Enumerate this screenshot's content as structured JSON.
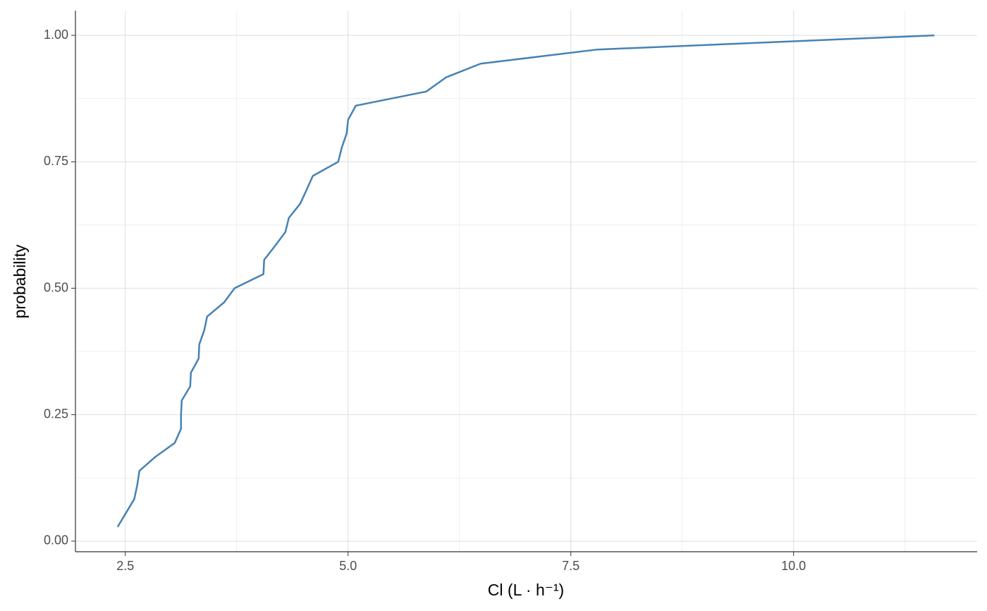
{
  "chart_data": {
    "type": "line",
    "x_label": "Cl (L · h⁻¹)",
    "y_label": "probability",
    "x": [
      2.413,
      2.508,
      2.6,
      2.634,
      2.658,
      2.84,
      3.054,
      3.125,
      3.125,
      3.133,
      3.228,
      3.236,
      3.323,
      3.33,
      3.386,
      3.418,
      3.608,
      3.726,
      4.05,
      4.058,
      4.177,
      4.296,
      4.335,
      4.462,
      4.533,
      4.604,
      4.889,
      4.929,
      4.984,
      5.0,
      5.087,
      5.878,
      6.1,
      6.487,
      7.8,
      11.58
    ],
    "series": [
      {
        "color": "#4682b4",
        "values": [
          0.028,
          0.056,
          0.083,
          0.111,
          0.139,
          0.167,
          0.194,
          0.222,
          0.25,
          0.278,
          0.306,
          0.333,
          0.361,
          0.389,
          0.417,
          0.444,
          0.472,
          0.5,
          0.528,
          0.556,
          0.583,
          0.611,
          0.639,
          0.667,
          0.694,
          0.722,
          0.75,
          0.778,
          0.806,
          0.833,
          0.861,
          0.889,
          0.917,
          0.944,
          0.972,
          1.0
        ]
      }
    ],
    "xlim": [
      1.94,
      12.06
    ],
    "ylim": [
      -0.021,
      1.049
    ],
    "xticks": [
      {
        "value": 2.5,
        "label": "2.5"
      },
      {
        "value": 5,
        "label": "5.0"
      },
      {
        "value": 7.5,
        "label": "7.5"
      },
      {
        "value": 10,
        "label": "10.0"
      }
    ],
    "yticks": [
      {
        "value": 0,
        "label": "0.00"
      },
      {
        "value": 0.25,
        "label": "0.25"
      },
      {
        "value": 0.5,
        "label": "0.50"
      },
      {
        "value": 0.75,
        "label": "0.75"
      },
      {
        "value": 1,
        "label": "1.00"
      }
    ],
    "x_minor_grid": [
      3.75,
      6.25,
      8.75,
      11.25
    ],
    "y_minor_grid": [
      0.125,
      0.375,
      0.625,
      0.875
    ],
    "grid": true
  }
}
